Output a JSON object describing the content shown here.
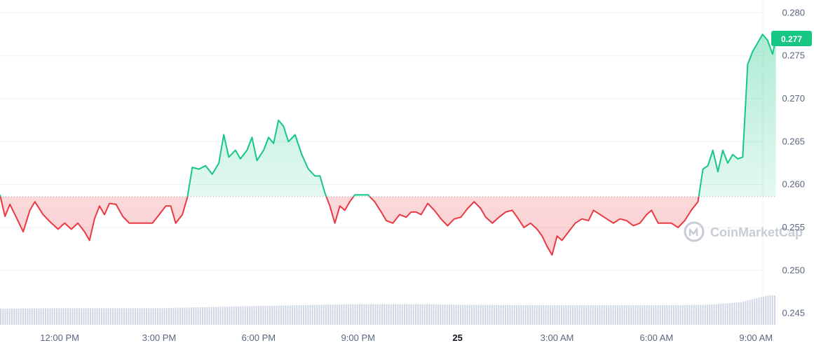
{
  "chart_data": {
    "type": "area",
    "y_ticks": [
      "0.280",
      "0.275",
      "0.270",
      "0.265",
      "0.260",
      "0.255",
      "0.250",
      "0.245"
    ],
    "ylim": [
      0.2435,
      0.2815
    ],
    "x_ticks": [
      {
        "label": "12:00 PM",
        "t": 12,
        "bold": false
      },
      {
        "label": "3:00 PM",
        "t": 15,
        "bold": false
      },
      {
        "label": "6:00 PM",
        "t": 18,
        "bold": false
      },
      {
        "label": "9:00 PM",
        "t": 21,
        "bold": false
      },
      {
        "label": "25",
        "t": 24,
        "bold": true
      },
      {
        "label": "3:00 AM",
        "t": 27,
        "bold": false
      },
      {
        "label": "6:00 AM",
        "t": 30,
        "bold": false
      },
      {
        "label": "9:00 AM",
        "t": 33,
        "bold": false
      }
    ],
    "xlim": [
      10.2,
      34.75
    ],
    "baseline": 0.2586,
    "current_price": "0.277",
    "colors": {
      "up": "#16c784",
      "down": "#ea3943",
      "volume": "#cfd6e4",
      "grid": "#eff2f5",
      "baseline": "#a6b0c3"
    },
    "price_series": [
      [
        10.2,
        0.2588
      ],
      [
        10.35,
        0.2563
      ],
      [
        10.5,
        0.2577
      ],
      [
        10.65,
        0.2565
      ],
      [
        10.9,
        0.2545
      ],
      [
        11.1,
        0.257
      ],
      [
        11.25,
        0.258
      ],
      [
        11.5,
        0.2565
      ],
      [
        11.7,
        0.2557
      ],
      [
        11.95,
        0.2548
      ],
      [
        12.15,
        0.2555
      ],
      [
        12.35,
        0.2548
      ],
      [
        12.55,
        0.2555
      ],
      [
        12.75,
        0.2545
      ],
      [
        12.9,
        0.2535
      ],
      [
        13.05,
        0.256
      ],
      [
        13.2,
        0.2575
      ],
      [
        13.35,
        0.2565
      ],
      [
        13.5,
        0.2578
      ],
      [
        13.7,
        0.2577
      ],
      [
        13.9,
        0.2563
      ],
      [
        14.1,
        0.2555
      ],
      [
        14.3,
        0.2555
      ],
      [
        14.55,
        0.2555
      ],
      [
        14.8,
        0.2555
      ],
      [
        15.0,
        0.2565
      ],
      [
        15.2,
        0.2575
      ],
      [
        15.35,
        0.2575
      ],
      [
        15.5,
        0.2555
      ],
      [
        15.7,
        0.2565
      ],
      [
        15.85,
        0.2585
      ],
      [
        16.0,
        0.262
      ],
      [
        16.2,
        0.2618
      ],
      [
        16.4,
        0.2622
      ],
      [
        16.6,
        0.2612
      ],
      [
        16.8,
        0.2625
      ],
      [
        16.95,
        0.2658
      ],
      [
        17.1,
        0.2632
      ],
      [
        17.3,
        0.264
      ],
      [
        17.45,
        0.263
      ],
      [
        17.65,
        0.264
      ],
      [
        17.8,
        0.2655
      ],
      [
        17.95,
        0.2628
      ],
      [
        18.15,
        0.264
      ],
      [
        18.3,
        0.2655
      ],
      [
        18.45,
        0.2648
      ],
      [
        18.6,
        0.2675
      ],
      [
        18.75,
        0.2668
      ],
      [
        18.9,
        0.265
      ],
      [
        19.1,
        0.2658
      ],
      [
        19.3,
        0.2635
      ],
      [
        19.5,
        0.2618
      ],
      [
        19.7,
        0.261
      ],
      [
        19.85,
        0.261
      ],
      [
        20.0,
        0.259
      ],
      [
        20.15,
        0.2575
      ],
      [
        20.3,
        0.2555
      ],
      [
        20.45,
        0.2575
      ],
      [
        20.6,
        0.257
      ],
      [
        20.75,
        0.258
      ],
      [
        20.9,
        0.2588
      ],
      [
        21.1,
        0.2588
      ],
      [
        21.3,
        0.2588
      ],
      [
        21.5,
        0.258
      ],
      [
        21.7,
        0.2568
      ],
      [
        21.85,
        0.2558
      ],
      [
        22.05,
        0.2555
      ],
      [
        22.25,
        0.2565
      ],
      [
        22.45,
        0.2562
      ],
      [
        22.6,
        0.2568
      ],
      [
        22.75,
        0.2568
      ],
      [
        22.9,
        0.2565
      ],
      [
        23.1,
        0.2578
      ],
      [
        23.3,
        0.257
      ],
      [
        23.5,
        0.256
      ],
      [
        23.7,
        0.2552
      ],
      [
        23.9,
        0.256
      ],
      [
        24.1,
        0.2562
      ],
      [
        24.3,
        0.2572
      ],
      [
        24.5,
        0.258
      ],
      [
        24.7,
        0.2572
      ],
      [
        24.85,
        0.2562
      ],
      [
        25.05,
        0.2555
      ],
      [
        25.25,
        0.2562
      ],
      [
        25.45,
        0.2568
      ],
      [
        25.65,
        0.257
      ],
      [
        25.8,
        0.2562
      ],
      [
        26.0,
        0.255
      ],
      [
        26.2,
        0.2555
      ],
      [
        26.4,
        0.2548
      ],
      [
        26.55,
        0.254
      ],
      [
        26.7,
        0.2528
      ],
      [
        26.85,
        0.2518
      ],
      [
        27.0,
        0.254
      ],
      [
        27.15,
        0.2535
      ],
      [
        27.35,
        0.2545
      ],
      [
        27.55,
        0.2555
      ],
      [
        27.75,
        0.256
      ],
      [
        27.95,
        0.2558
      ],
      [
        28.1,
        0.257
      ],
      [
        28.3,
        0.2565
      ],
      [
        28.5,
        0.256
      ],
      [
        28.7,
        0.2555
      ],
      [
        28.9,
        0.256
      ],
      [
        29.1,
        0.2558
      ],
      [
        29.3,
        0.2552
      ],
      [
        29.5,
        0.2555
      ],
      [
        29.7,
        0.2565
      ],
      [
        29.85,
        0.257
      ],
      [
        30.05,
        0.2555
      ],
      [
        30.25,
        0.2555
      ],
      [
        30.45,
        0.2555
      ],
      [
        30.65,
        0.255
      ],
      [
        30.85,
        0.2558
      ],
      [
        31.05,
        0.257
      ],
      [
        31.25,
        0.258
      ],
      [
        31.4,
        0.2618
      ],
      [
        31.55,
        0.2622
      ],
      [
        31.7,
        0.264
      ],
      [
        31.85,
        0.2615
      ],
      [
        32.0,
        0.264
      ],
      [
        32.15,
        0.2625
      ],
      [
        32.3,
        0.2635
      ],
      [
        32.45,
        0.263
      ],
      [
        32.6,
        0.2632
      ],
      [
        32.75,
        0.274
      ],
      [
        32.9,
        0.2755
      ],
      [
        33.05,
        0.2765
      ],
      [
        33.2,
        0.2775
      ],
      [
        33.35,
        0.2768
      ],
      [
        33.5,
        0.2752
      ],
      [
        33.6,
        0.277
      ]
    ],
    "volume_series": [
      [
        10.2,
        0.27
      ],
      [
        12.0,
        0.3
      ],
      [
        15.0,
        0.3
      ],
      [
        18.0,
        0.42
      ],
      [
        21.0,
        0.52
      ],
      [
        23.0,
        0.52
      ],
      [
        24.0,
        0.48
      ],
      [
        27.0,
        0.46
      ],
      [
        30.0,
        0.46
      ],
      [
        31.5,
        0.48
      ],
      [
        32.5,
        0.62
      ],
      [
        33.0,
        0.85
      ],
      [
        33.35,
        1.0
      ],
      [
        33.6,
        1.0
      ]
    ],
    "watermark": "CoinMarketCap"
  }
}
